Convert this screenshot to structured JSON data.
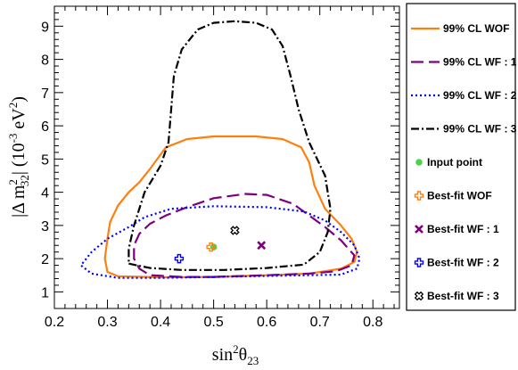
{
  "chart_data": {
    "type": "contour",
    "title": "",
    "xlabel": {
      "base": "sin",
      "sup": "2",
      "theta": "θ",
      "sub": "23"
    },
    "ylabel": {
      "open": "|Δ m",
      "sup": "2",
      "sub": "32",
      "close": "| (10",
      "exp": "-3",
      "unit": " eV",
      "unit_sup": "2",
      "end": ")"
    },
    "xlim": [
      0.2,
      0.85
    ],
    "ylim": [
      0.5,
      9.6
    ],
    "x_ticks": [
      0.2,
      0.3,
      0.4,
      0.5,
      0.6,
      0.7,
      0.8
    ],
    "x_tick_labels": [
      "0.2",
      "0.3",
      "0.4",
      "0.5",
      "0.6",
      "0.7",
      "0.8"
    ],
    "y_ticks": [
      1,
      2,
      3,
      4,
      5,
      6,
      7,
      8,
      9
    ],
    "y_tick_labels": [
      "1",
      "2",
      "3",
      "4",
      "5",
      "6",
      "7",
      "8",
      "9"
    ],
    "legend_position": "right",
    "series": [
      {
        "name": "99% CL WOF",
        "kind": "contour",
        "color": "#ff7f0e",
        "dash": "solid",
        "points": [
          [
            0.5,
            1.45
          ],
          [
            0.6,
            1.5
          ],
          [
            0.68,
            1.55
          ],
          [
            0.74,
            1.7
          ],
          [
            0.765,
            1.9
          ],
          [
            0.77,
            2.2
          ],
          [
            0.76,
            2.6
          ],
          [
            0.74,
            3.0
          ],
          [
            0.71,
            3.5
          ],
          [
            0.69,
            4.2
          ],
          [
            0.68,
            4.9
          ],
          [
            0.665,
            5.35
          ],
          [
            0.63,
            5.6
          ],
          [
            0.58,
            5.68
          ],
          [
            0.5,
            5.68
          ],
          [
            0.45,
            5.6
          ],
          [
            0.41,
            5.35
          ],
          [
            0.38,
            4.7
          ],
          [
            0.36,
            4.3
          ],
          [
            0.34,
            4.0
          ],
          [
            0.32,
            3.6
          ],
          [
            0.305,
            3.1
          ],
          [
            0.3,
            2.6
          ],
          [
            0.295,
            2.0
          ],
          [
            0.3,
            1.6
          ],
          [
            0.32,
            1.47
          ],
          [
            0.4,
            1.44
          ],
          [
            0.5,
            1.45
          ]
        ]
      },
      {
        "name": "99% CL WF : 1",
        "kind": "contour",
        "color": "#7f007f",
        "dash": "long-dash",
        "points": [
          [
            0.5,
            1.45
          ],
          [
            0.6,
            1.5
          ],
          [
            0.68,
            1.55
          ],
          [
            0.73,
            1.62
          ],
          [
            0.76,
            1.8
          ],
          [
            0.765,
            2.1
          ],
          [
            0.74,
            2.55
          ],
          [
            0.71,
            2.95
          ],
          [
            0.68,
            3.3
          ],
          [
            0.65,
            3.65
          ],
          [
            0.6,
            3.92
          ],
          [
            0.56,
            3.95
          ],
          [
            0.5,
            3.82
          ],
          [
            0.45,
            3.55
          ],
          [
            0.41,
            3.3
          ],
          [
            0.38,
            3.05
          ],
          [
            0.36,
            2.75
          ],
          [
            0.35,
            2.4
          ],
          [
            0.35,
            2.0
          ],
          [
            0.36,
            1.7
          ],
          [
            0.38,
            1.5
          ],
          [
            0.44,
            1.45
          ],
          [
            0.5,
            1.45
          ]
        ]
      },
      {
        "name": "99% CL WF : 2",
        "kind": "contour",
        "color": "#0000ff",
        "dash": "dotted",
        "points": [
          [
            0.5,
            1.45
          ],
          [
            0.6,
            1.48
          ],
          [
            0.68,
            1.5
          ],
          [
            0.74,
            1.52
          ],
          [
            0.77,
            1.7
          ],
          [
            0.775,
            2.0
          ],
          [
            0.765,
            2.4
          ],
          [
            0.74,
            2.8
          ],
          [
            0.71,
            3.15
          ],
          [
            0.67,
            3.42
          ],
          [
            0.6,
            3.55
          ],
          [
            0.5,
            3.58
          ],
          [
            0.42,
            3.5
          ],
          [
            0.37,
            3.25
          ],
          [
            0.34,
            2.95
          ],
          [
            0.3,
            2.6
          ],
          [
            0.27,
            2.2
          ],
          [
            0.25,
            1.8
          ],
          [
            0.27,
            1.55
          ],
          [
            0.32,
            1.42
          ],
          [
            0.4,
            1.42
          ],
          [
            0.5,
            1.45
          ]
        ]
      },
      {
        "name": "99% CL WF : 3",
        "kind": "contour",
        "color": "#000000",
        "dash": "dash-dot",
        "points": [
          [
            0.34,
            1.85
          ],
          [
            0.38,
            1.72
          ],
          [
            0.44,
            1.66
          ],
          [
            0.52,
            1.66
          ],
          [
            0.6,
            1.72
          ],
          [
            0.67,
            1.82
          ],
          [
            0.7,
            2.2
          ],
          [
            0.715,
            2.8
          ],
          [
            0.72,
            3.5
          ],
          [
            0.71,
            4.5
          ],
          [
            0.68,
            5.5
          ],
          [
            0.66,
            6.5
          ],
          [
            0.645,
            7.5
          ],
          [
            0.63,
            8.4
          ],
          [
            0.61,
            8.9
          ],
          [
            0.58,
            9.1
          ],
          [
            0.54,
            9.15
          ],
          [
            0.5,
            9.1
          ],
          [
            0.47,
            8.9
          ],
          [
            0.44,
            8.3
          ],
          [
            0.425,
            7.5
          ],
          [
            0.42,
            6.5
          ],
          [
            0.415,
            5.5
          ],
          [
            0.4,
            4.8
          ],
          [
            0.37,
            4.0
          ],
          [
            0.35,
            3.0
          ],
          [
            0.34,
            2.3
          ],
          [
            0.34,
            1.85
          ]
        ]
      },
      {
        "name": "Input point",
        "kind": "marker",
        "marker": "circle",
        "color": "#4fd14f",
        "points": [
          [
            0.5,
            2.35
          ]
        ]
      },
      {
        "name": "Best-fit WOF",
        "kind": "marker",
        "marker": "open-cross",
        "color": "#ff7f0e",
        "points": [
          [
            0.495,
            2.35
          ]
        ]
      },
      {
        "name": "Best-fit WF : 1",
        "kind": "marker",
        "marker": "x-cross",
        "color": "#7f007f",
        "points": [
          [
            0.59,
            2.4
          ]
        ]
      },
      {
        "name": "Best-fit WF : 2",
        "kind": "marker",
        "marker": "open-cross",
        "color": "#0000ff",
        "points": [
          [
            0.435,
            2.0
          ]
        ]
      },
      {
        "name": "Best-fit WF : 3",
        "kind": "marker",
        "marker": "open-x",
        "color": "#000000",
        "points": [
          [
            0.54,
            2.85
          ]
        ]
      }
    ]
  }
}
